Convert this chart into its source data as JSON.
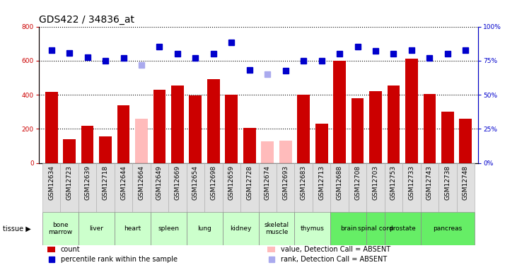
{
  "title": "GDS422 / 34836_at",
  "samples": [
    "GSM12634",
    "GSM12723",
    "GSM12639",
    "GSM12718",
    "GSM12644",
    "GSM12664",
    "GSM12649",
    "GSM12669",
    "GSM12654",
    "GSM12698",
    "GSM12659",
    "GSM12728",
    "GSM12674",
    "GSM12693",
    "GSM12683",
    "GSM12713",
    "GSM12688",
    "GSM12708",
    "GSM12703",
    "GSM12753",
    "GSM12733",
    "GSM12743",
    "GSM12738",
    "GSM12748"
  ],
  "count_values": [
    415,
    140,
    220,
    155,
    340,
    260,
    430,
    455,
    395,
    490,
    400,
    205,
    125,
    130,
    400,
    230,
    600,
    380,
    420,
    455,
    610,
    405,
    300,
    260
  ],
  "absent_count": [
    false,
    false,
    false,
    false,
    false,
    true,
    false,
    false,
    false,
    false,
    false,
    false,
    true,
    true,
    false,
    false,
    false,
    false,
    false,
    false,
    false,
    false,
    false,
    false
  ],
  "rank_values": [
    660,
    645,
    620,
    600,
    615,
    575,
    680,
    640,
    617,
    640,
    705,
    545,
    520,
    540,
    600,
    600,
    640,
    680,
    656,
    640,
    660,
    615,
    640,
    660
  ],
  "absent_rank": [
    false,
    false,
    false,
    false,
    false,
    true,
    false,
    false,
    false,
    false,
    false,
    false,
    true,
    false,
    false,
    false,
    false,
    false,
    false,
    false,
    false,
    false,
    false,
    false
  ],
  "tissues": [
    {
      "name": "bone\nmarrow",
      "indices": [
        0,
        1
      ],
      "bg": "#ccffcc"
    },
    {
      "name": "liver",
      "indices": [
        2,
        3
      ],
      "bg": "#ccffcc"
    },
    {
      "name": "heart",
      "indices": [
        4,
        5
      ],
      "bg": "#ccffcc"
    },
    {
      "name": "spleen",
      "indices": [
        6,
        7
      ],
      "bg": "#ccffcc"
    },
    {
      "name": "lung",
      "indices": [
        8,
        9
      ],
      "bg": "#ccffcc"
    },
    {
      "name": "kidney",
      "indices": [
        10,
        11
      ],
      "bg": "#ccffcc"
    },
    {
      "name": "skeletal\nmuscle",
      "indices": [
        12,
        13
      ],
      "bg": "#ccffcc"
    },
    {
      "name": "thymus",
      "indices": [
        14,
        15
      ],
      "bg": "#ccffcc"
    },
    {
      "name": "brain",
      "indices": [
        16,
        17
      ],
      "bg": "#66ee66"
    },
    {
      "name": "spinal cord",
      "indices": [
        18
      ],
      "bg": "#66ee66"
    },
    {
      "name": "prostate",
      "indices": [
        19,
        20
      ],
      "bg": "#66ee66"
    },
    {
      "name": "pancreas",
      "indices": [
        21,
        22,
        23
      ],
      "bg": "#66ee66"
    }
  ],
  "bar_color_present": "#cc0000",
  "bar_color_absent": "#ffbbbb",
  "rank_color_present": "#0000cc",
  "rank_color_absent": "#aaaaee",
  "ylim_left": [
    0,
    800
  ],
  "ylim_right": [
    0,
    100
  ],
  "yticks_left": [
    0,
    200,
    400,
    600,
    800
  ],
  "yticks_right": [
    0,
    25,
    50,
    75,
    100
  ],
  "bar_width": 0.7,
  "marker_size": 6,
  "title_fontsize": 10,
  "tick_fontsize": 6.5,
  "label_fontsize": 7
}
